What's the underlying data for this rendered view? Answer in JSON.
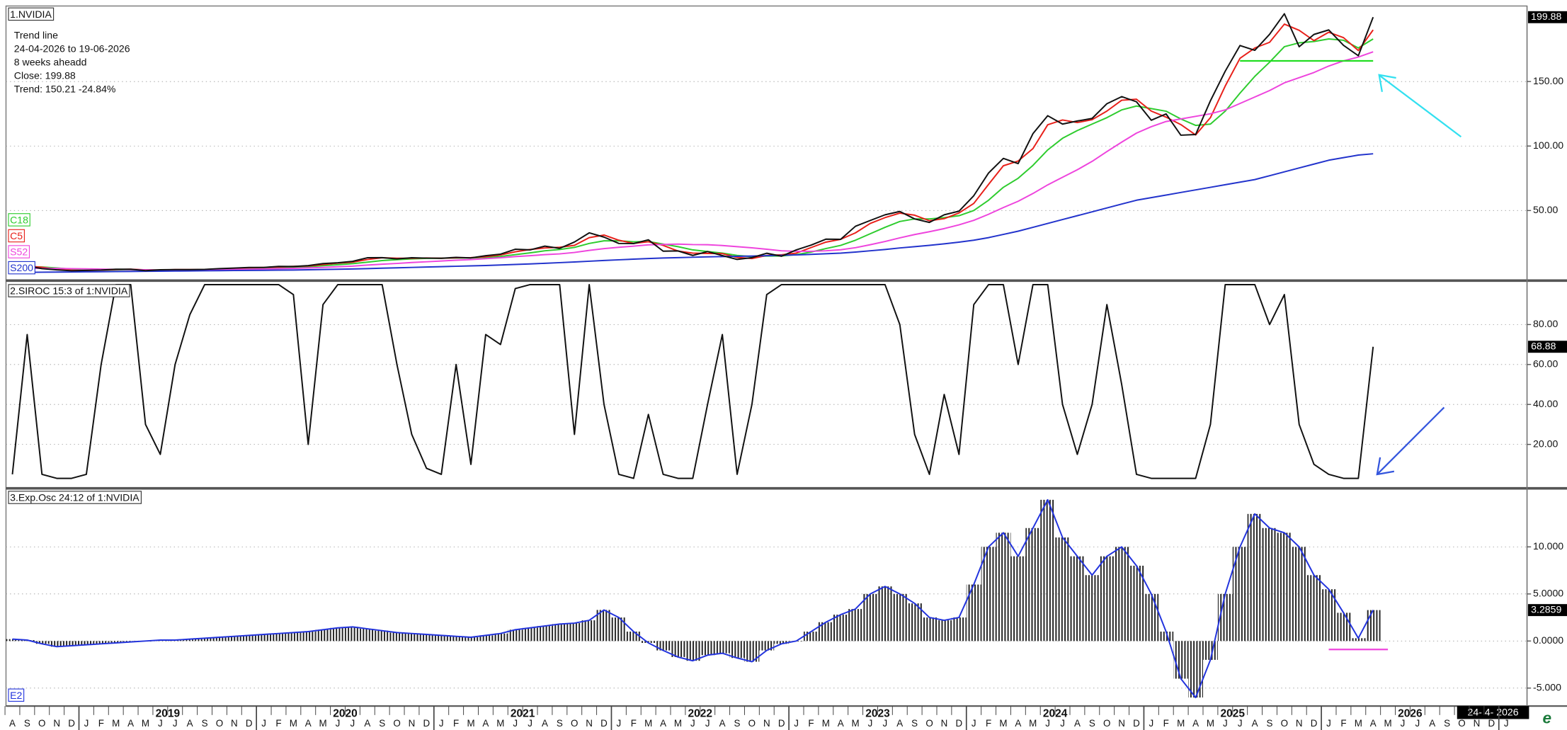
{
  "chart_data": [
    {
      "type": "line",
      "title": "1.NVIDIA",
      "info": [
        "Trend line",
        "24-04-2026 to 19-06-2026",
        "8 weeks aheadd",
        "Close: 199.88",
        "Trend: 150.21 -24.84%"
      ],
      "ylim": [
        -2,
        207
      ],
      "yticks": [
        {
          "value": 50,
          "label": "50.00"
        },
        {
          "value": 100,
          "label": "100.00"
        },
        {
          "value": 150,
          "label": "150.00"
        }
      ],
      "grid": true,
      "hlines": [
        {
          "value": 166,
          "color": "#22dd22",
          "from": "2025-07",
          "to": "2026-04"
        }
      ],
      "series": [
        {
          "name": "C18",
          "color": "#2ecc2e",
          "values": [
            6,
            6.5,
            6.2,
            5.5,
            4.6,
            4.1,
            3.9,
            4,
            4.2,
            4,
            3.9,
            4,
            4.1,
            4.2,
            4.4,
            4.7,
            5.1,
            5.4,
            5.8,
            6.1,
            6.5,
            7.2,
            8,
            8.8,
            10,
            11.2,
            11.9,
            12.5,
            12.9,
            13,
            13.2,
            13.3,
            13.7,
            14.4,
            15.8,
            17.2,
            18.8,
            19.8,
            21.4,
            24.5,
            26.5,
            26.5,
            25.8,
            26,
            24,
            22,
            19.5,
            18.2,
            17,
            15.2,
            14.3,
            14.7,
            14.8,
            15.8,
            17.8,
            20.5,
            23,
            27,
            32,
            37,
            41.5,
            43.5,
            43.5,
            44.5,
            46,
            50,
            58,
            68,
            75,
            85,
            97,
            106,
            112,
            117,
            122,
            128,
            131,
            129,
            127,
            121,
            116,
            117,
            127,
            141,
            154,
            165,
            177,
            180,
            181,
            183,
            182,
            176,
            183,
            null,
            null,
            null,
            null,
            null,
            null,
            null,
            null,
            null
          ]
        },
        {
          "name": "C5",
          "color": "#e8201a",
          "values": [
            7,
            7,
            6,
            4.5,
            3.7,
            3.5,
            3.8,
            4.2,
            4.5,
            4,
            3.8,
            4.2,
            4.2,
            4.3,
            4.7,
            5.2,
            5.7,
            5.9,
            6.3,
            6.7,
            7,
            8.1,
            9.2,
            10,
            12,
            13.4,
            13,
            13,
            13.2,
            13,
            13.4,
            13.5,
            14.2,
            15.6,
            18,
            19.8,
            21,
            21.5,
            23,
            29,
            31,
            27,
            24.5,
            25.8,
            23,
            18.6,
            17,
            16.7,
            16.6,
            13.6,
            12.8,
            15.2,
            15.7,
            17,
            21.3,
            25.5,
            27.7,
            32.7,
            40,
            44.5,
            48,
            46.4,
            42.1,
            43.7,
            48.1,
            55.5,
            70.3,
            84.7,
            88.4,
            98,
            116.5,
            120.2,
            118.2,
            120.4,
            127.1,
            135.5,
            136.3,
            127.1,
            122.4,
            116.6,
            108.6,
            122,
            146.5,
            168,
            176,
            180.4,
            194.5,
            189.7,
            181.7,
            188.2,
            184,
            174,
            190,
            null,
            null,
            null,
            null,
            null,
            null,
            null,
            null,
            null
          ]
        },
        {
          "name": "S52",
          "color": "#ee44dd",
          "values": [
            5,
            5.2,
            5.2,
            5.1,
            4.9,
            4.8,
            4.6,
            4.4,
            4.2,
            4,
            3.9,
            3.9,
            3.9,
            4,
            4.1,
            4.3,
            4.5,
            4.7,
            5,
            5.2,
            5.5,
            5.9,
            6.4,
            6.9,
            7.7,
            8.4,
            9,
            9.7,
            10.3,
            10.9,
            11.5,
            12,
            12.7,
            13.4,
            14.3,
            15,
            15.8,
            16.4,
            17.5,
            19.1,
            20.5,
            21.5,
            22.4,
            23.4,
            23.7,
            24,
            23.6,
            23.5,
            22.9,
            22,
            21.1,
            20,
            18.8,
            18.4,
            18.4,
            18.8,
            19.6,
            21.2,
            23.5,
            26,
            28.8,
            31.4,
            33.6,
            36,
            38.9,
            42.4,
            47.1,
            52.3,
            57.2,
            63.2,
            69.9,
            75.8,
            81.6,
            88.1,
            95.7,
            103,
            110,
            115,
            119,
            121,
            123,
            125,
            128,
            133,
            138,
            143,
            149,
            153,
            157,
            162,
            166,
            169,
            173,
            null,
            null,
            null,
            null,
            null,
            null,
            null,
            null,
            null
          ]
        },
        {
          "name": "S200",
          "color": "#2233cc",
          "values": [
            2,
            2.1,
            2.2,
            2.3,
            2.4,
            2.5,
            2.6,
            2.7,
            2.8,
            2.9,
            3,
            3.1,
            3.2,
            3.3,
            3.4,
            3.5,
            3.6,
            3.7,
            3.8,
            3.9,
            4.1,
            4.3,
            4.5,
            4.7,
            5,
            5.3,
            5.6,
            5.9,
            6.2,
            6.5,
            6.8,
            7.1,
            7.4,
            7.8,
            8.2,
            8.6,
            9.1,
            9.6,
            10.1,
            10.7,
            11.3,
            11.8,
            12.3,
            12.8,
            13.2,
            13.5,
            13.8,
            14.1,
            14.3,
            14.5,
            14.7,
            15,
            15.3,
            15.6,
            16,
            16.5,
            17,
            17.8,
            18.8,
            19.8,
            21,
            22,
            23,
            24.2,
            25.5,
            27,
            29,
            31.5,
            34,
            37,
            40,
            43,
            46,
            49,
            52,
            55,
            58,
            60,
            62,
            64,
            66,
            68,
            70,
            72,
            74,
            77,
            80,
            83,
            86,
            89,
            91,
            93,
            94,
            null,
            null,
            null,
            null,
            null,
            null,
            null,
            null,
            null
          ]
        },
        {
          "color": "#111111",
          "values": [
            7,
            7,
            5,
            4,
            3.3,
            3.6,
            3.9,
            4.5,
            4.5,
            3.4,
            4.1,
            4.2,
            4.2,
            4.4,
            5,
            5.4,
            5.9,
            5.9,
            6.7,
            6.6,
            7.3,
            8.9,
            9.5,
            10.6,
            13.4,
            13.5,
            12.5,
            13.4,
            13.1,
            13,
            13.7,
            13.3,
            15,
            16.2,
            20,
            19.5,
            22.4,
            20.7,
            25.6,
            32.7,
            29.4,
            24.5,
            24.4,
            27.3,
            18.5,
            18.7,
            15.2,
            18.2,
            15.1,
            12.1,
            13.5,
            16.9,
            14.6,
            19.5,
            23.2,
            27.8,
            27.7,
            37.8,
            42.3,
            46.7,
            49.3,
            43.5,
            40.8,
            46.7,
            49.5,
            61.5,
            79.1,
            90.4,
            86.4,
            109.6,
            123.5,
            117,
            119.4,
            121.4,
            132.8,
            138.3,
            134.3,
            120,
            124.9,
            108.4,
            108.9,
            135.1,
            158,
            177.9,
            174.2,
            186.6,
            202.5,
            177,
            186.5,
            190,
            178,
            170,
            199.88,
            null,
            null,
            null,
            null,
            null,
            null,
            null,
            null,
            null
          ]
        }
      ]
    },
    {
      "type": "line",
      "title": "2.SIROC 15:3 of 1:NVIDIA",
      "ylim": [
        -1,
        100
      ],
      "yticks": [
        {
          "value": 20,
          "label": "20.00"
        },
        {
          "value": 40,
          "label": "40.00"
        },
        {
          "value": 60,
          "label": "60.00"
        },
        {
          "value": 80,
          "label": "80.00"
        }
      ],
      "grid": true,
      "series": [
        {
          "color": "#111111",
          "values": [
            5,
            75,
            5,
            3,
            3,
            5,
            60,
            100,
            100,
            30,
            15,
            60,
            85,
            100,
            100,
            100,
            100,
            100,
            100,
            95,
            20,
            90,
            100,
            100,
            100,
            100,
            60,
            25,
            8,
            5,
            60,
            10,
            75,
            70,
            98,
            100,
            100,
            100,
            25,
            100,
            40,
            5,
            3,
            35,
            5,
            3,
            3,
            40,
            75,
            5,
            40,
            95,
            100,
            100,
            100,
            100,
            100,
            100,
            100,
            100,
            80,
            25,
            5,
            45,
            15,
            90,
            100,
            100,
            60,
            100,
            100,
            40,
            15,
            40,
            90,
            50,
            5,
            3,
            3,
            3,
            3,
            30,
            100,
            100,
            100,
            80,
            95,
            30,
            10,
            5,
            3,
            3,
            68.88,
            null,
            null,
            null,
            null,
            null,
            null,
            null,
            null,
            null
          ]
        }
      ]
    },
    {
      "type": "bar",
      "title": "3.Exp.Osc 24:12 of 1:NVIDIA",
      "ylim": [
        -6.8,
        15.9
      ],
      "yticks": [
        {
          "value": -5,
          "label": "-5.000"
        },
        {
          "value": 0,
          "label": "0.0000"
        },
        {
          "value": 5,
          "label": "5.0000"
        },
        {
          "value": 10,
          "label": "10.000"
        }
      ],
      "grid": true,
      "hlines": [
        {
          "value": -0.9,
          "color": "#ee44dd",
          "from": "2026-01",
          "to": "2026-05"
        }
      ],
      "date_label": "24- 4- 2026",
      "categories": [
        "A",
        "S",
        "O",
        "N",
        "D",
        "J",
        "F",
        "M",
        "A",
        "M",
        "J",
        "J",
        "A",
        "S",
        "O",
        "N",
        "D",
        "J",
        "F",
        "M",
        "A",
        "M",
        "J",
        "J",
        "A",
        "S",
        "O",
        "N",
        "D",
        "J",
        "F",
        "M",
        "A",
        "M",
        "J",
        "J",
        "A",
        "S",
        "O",
        "N",
        "D",
        "J",
        "F",
        "M",
        "A",
        "M",
        "J",
        "J",
        "A",
        "S",
        "O",
        "N",
        "D",
        "J",
        "F",
        "M",
        "A",
        "M",
        "J",
        "J",
        "A",
        "S",
        "O",
        "N",
        "D",
        "J",
        "F",
        "M",
        "A",
        "M",
        "J",
        "J",
        "A",
        "S",
        "O",
        "N",
        "D",
        "J",
        "F",
        "M",
        "A",
        "M",
        "J",
        "J",
        "A",
        "S",
        "O",
        "N",
        "D",
        "J",
        "F",
        "M",
        "A",
        "M",
        "J",
        "J",
        "A",
        "S",
        "O",
        "N",
        "D",
        "J"
      ],
      "years": [
        2019,
        2020,
        2021,
        2022,
        2023,
        2024,
        2025,
        2026
      ],
      "series": [
        {
          "name": "E2",
          "color": "#2233dd",
          "values": [
            0.2,
            0.1,
            -0.3,
            -0.6,
            -0.5,
            -0.4,
            -0.3,
            -0.2,
            -0.1,
            0,
            0.1,
            0.1,
            0.2,
            0.3,
            0.4,
            0.5,
            0.6,
            0.7,
            0.8,
            0.9,
            1,
            1.2,
            1.4,
            1.5,
            1.3,
            1.1,
            0.9,
            0.8,
            0.7,
            0.6,
            0.5,
            0.4,
            0.6,
            0.8,
            1.2,
            1.4,
            1.6,
            1.8,
            1.9,
            2.2,
            3.3,
            2.5,
            1,
            -0.2,
            -1,
            -1.7,
            -2.1,
            -1.5,
            -1.3,
            -1.8,
            -2.2,
            -1,
            -0.3,
            0,
            1,
            2,
            2.8,
            3.4,
            5,
            5.8,
            5,
            4,
            2.5,
            2.2,
            2.5,
            6,
            10,
            11.5,
            9,
            12,
            15,
            11,
            9,
            7,
            9,
            10,
            8,
            5,
            1,
            -4,
            -6,
            -2,
            5,
            10,
            13.5,
            12,
            11.5,
            10,
            7,
            5.5,
            3,
            0.3,
            3.2859,
            null,
            null,
            null,
            null,
            null,
            null,
            null,
            null,
            null
          ]
        }
      ]
    }
  ]
}
